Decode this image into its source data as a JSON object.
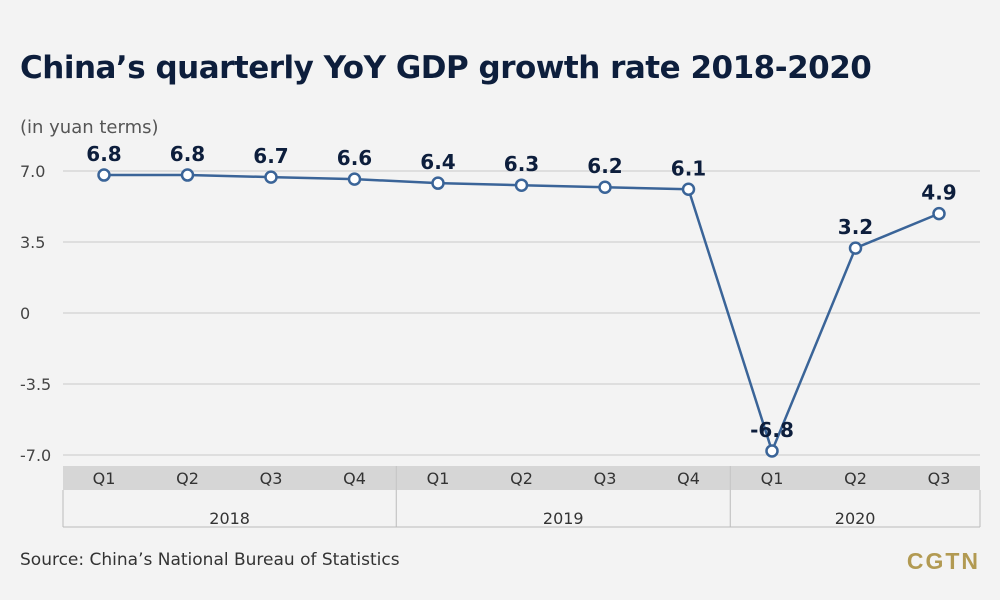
{
  "title": "China’s quarterly YoY GDP growth rate 2018-2020",
  "subtitle": "(in yuan terms)",
  "source": "Source: China’s National Bureau of Statistics",
  "logo": "CGTN",
  "colors": {
    "line": "#3a6498",
    "label": "#0d1e3c",
    "grid": "#c9c9c9",
    "quarter_band": "#d6d6d6",
    "logo": "#b29a52"
  },
  "chart_data": {
    "type": "line",
    "title": "China’s quarterly YoY GDP growth rate 2018-2020",
    "subtitle": "(in yuan terms)",
    "categories": [
      "Q1",
      "Q2",
      "Q3",
      "Q4",
      "Q1",
      "Q2",
      "Q3",
      "Q4",
      "Q1",
      "Q2",
      "Q3"
    ],
    "years": [
      {
        "label": "2018",
        "count": 4
      },
      {
        "label": "2019",
        "count": 4
      },
      {
        "label": "2020",
        "count": 3
      }
    ],
    "values": [
      6.8,
      6.8,
      6.7,
      6.6,
      6.4,
      6.3,
      6.2,
      6.1,
      -6.8,
      3.2,
      4.9
    ],
    "value_labels": [
      "6.8",
      "6.8",
      "6.7",
      "6.6",
      "6.4",
      "6.3",
      "6.2",
      "6.1",
      "-6.8",
      "3.2",
      "4.9"
    ],
    "yticks": [
      7.0,
      3.5,
      0,
      -3.5,
      -7.0
    ],
    "ytick_labels": [
      "7.0",
      "3.5",
      "0",
      "-3.5",
      "-7.0"
    ],
    "ylim": [
      -7.0,
      7.0
    ],
    "grid": true
  }
}
